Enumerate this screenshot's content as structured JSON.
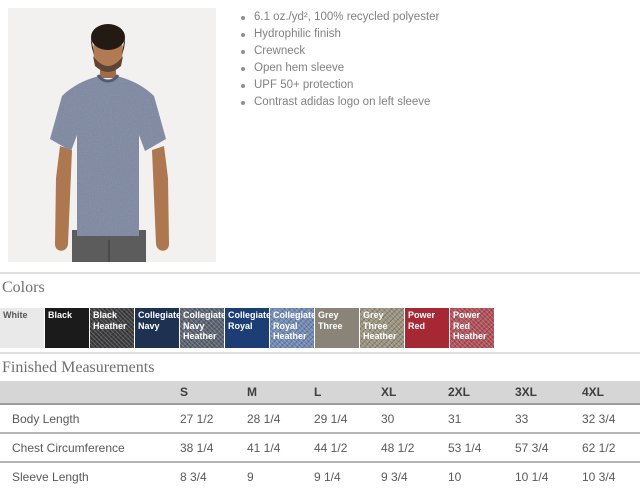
{
  "product": {
    "features": [
      "6.1 oz./yd², 100% recycled polyester",
      "Hydrophilic finish",
      "Crewneck",
      "Open hem sleeve",
      "UPF 50+ protection",
      "Contrast adidas logo on left sleeve"
    ]
  },
  "colors_section": {
    "heading": "Colors",
    "swatches": [
      {
        "name": "White",
        "hex": "#e9e9e9",
        "text_color": "#585858",
        "heather": false
      },
      {
        "name": "Black",
        "hex": "#1b1b1b",
        "text_color": "#ffffff",
        "heather": false
      },
      {
        "name": "Black Heather",
        "hex": "#3d3d3f",
        "text_color": "#ffffff",
        "heather": true
      },
      {
        "name": "Collegiate Navy",
        "hex": "#1e3150",
        "text_color": "#ffffff",
        "heather": false
      },
      {
        "name": "Collegiate Navy Heather",
        "hex": "#5c6370",
        "text_color": "#ffffff",
        "heather": true
      },
      {
        "name": "Collegiate Royal",
        "hex": "#1c3e74",
        "text_color": "#ffffff",
        "heather": false
      },
      {
        "name": "Collegiate Royal Heather",
        "hex": "#7089b4",
        "text_color": "#ffffff",
        "heather": true
      },
      {
        "name": "Grey Three",
        "hex": "#8a8478",
        "text_color": "#ffffff",
        "heather": false
      },
      {
        "name": "Grey Three Heather",
        "hex": "#99927f",
        "text_color": "#ffffff",
        "heather": true
      },
      {
        "name": "Power Red",
        "hex": "#a52834",
        "text_color": "#ffffff",
        "heather": false
      },
      {
        "name": "Power Red Heather",
        "hex": "#b25059",
        "text_color": "#ffffff",
        "heather": true
      }
    ]
  },
  "measurements": {
    "heading": "Finished Measurements",
    "columns": [
      "S",
      "M",
      "L",
      "XL",
      "2XL",
      "3XL",
      "4XL"
    ],
    "rows": [
      {
        "label": "Body Length",
        "values": [
          "27 1/2",
          "28 1/4",
          "29 1/4",
          "30",
          "31",
          "33",
          "32 3/4"
        ]
      },
      {
        "label": "Chest Circumference",
        "values": [
          "38 1/4",
          "41 1/4",
          "44 1/2",
          "48 1/2",
          "53 1/4",
          "57 3/4",
          "62 1/2"
        ]
      },
      {
        "label": "Sleeve Length",
        "values": [
          "8 3/4",
          "9",
          "9 1/4",
          "9 3/4",
          "10",
          "10 1/4",
          "10 3/4"
        ]
      }
    ]
  }
}
